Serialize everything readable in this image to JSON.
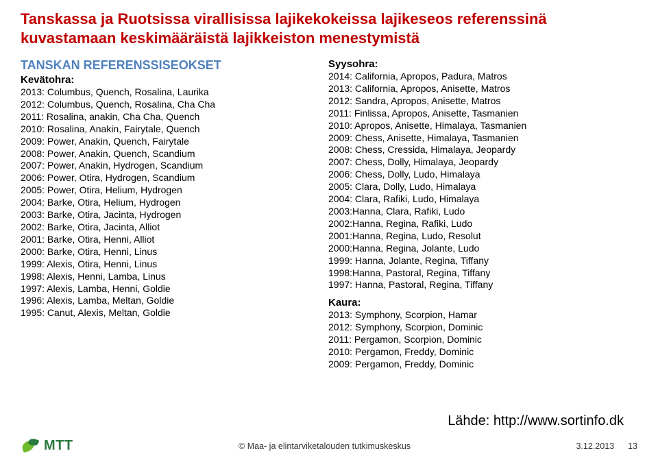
{
  "title": "Tanskassa ja Ruotsissa virallisissa lajikekokeissa lajikeseos referenssinä kuvastamaan keskimääräistä lajikkeiston menestymistä",
  "left": {
    "heading": "TANSKAN REFERENSSISEOKSET",
    "sub": "Kevätohra:",
    "lines": [
      "2013: Columbus, Quench, Rosalina, Laurika",
      "2012: Columbus, Quench, Rosalina, Cha Cha",
      "2011: Rosalina, anakin, Cha Cha, Quench",
      "2010: Rosalina, Anakin, Fairytale, Quench",
      "2009: Power, Anakin, Quench, Fairytale",
      "2008: Power, Anakin, Quench, Scandium",
      "2007: Power, Anakin, Hydrogen, Scandium",
      "2006: Power, Otira, Hydrogen, Scandium",
      "2005: Power, Otira, Helium, Hydrogen",
      "2004: Barke, Otira, Helium, Hydrogen",
      "2003: Barke, Otira, Jacinta, Hydrogen",
      "2002: Barke, Otira, Jacinta, Alliot",
      "2001: Barke, Otira, Henni, Alliot",
      "2000: Barke, Otira, Henni, Linus",
      "1999: Alexis, Otira, Henni, Linus",
      "1998: Alexis, Henni, Lamba, Linus",
      "1997: Alexis, Lamba, Henni, Goldie",
      "1996: Alexis, Lamba, Meltan, Goldie",
      "1995: Canut, Alexis, Meltan, Goldie"
    ]
  },
  "right": {
    "sub1": "Syysohra:",
    "lines1": [
      "2014: California, Apropos, Padura, Matros",
      "2013: California, Apropos, Anisette, Matros",
      "2012: Sandra, Apropos, Anisette, Matros",
      "2011: Finlissa, Apropos, Anisette, Tasmanien",
      "2010: Apropos, Anisette, Himalaya, Tasmanien",
      "2009: Chess, Anisette, Himalaya, Tasmanien",
      "2008: Chess, Cressida, Himalaya, Jeopardy",
      "2007: Chess, Dolly, Himalaya, Jeopardy",
      "2006: Chess, Dolly, Ludo, Himalaya",
      "2005: Clara, Dolly, Ludo, Himalaya",
      "2004: Clara, Rafiki, Ludo, Himalaya",
      "2003:Hanna, Clara, Rafiki, Ludo",
      "2002:Hanna, Regina, Rafiki, Ludo",
      "2001:Hanna, Regina, Ludo, Resolut",
      "2000:Hanna, Regina, Jolante, Ludo",
      "1999: Hanna, Jolante, Regina, Tiffany",
      "1998:Hanna, Pastoral, Regina, Tiffany",
      "1997: Hanna, Pastoral, Regina, Tiffany"
    ],
    "sub2": "Kaura:",
    "lines2": [
      "2013: Symphony, Scorpion, Hamar",
      "2012: Symphony, Scorpion, Dominic",
      "2011: Pergamon, Scorpion, Dominic",
      "2010: Pergamon, Freddy, Dominic",
      "2009: Pergamon, Freddy, Dominic"
    ]
  },
  "source": "Lähde: http://www.sortinfo.dk",
  "footer": {
    "org": "© Maa- ja elintarviketalouden tutkimuskeskus",
    "date": "3.12.2013",
    "page": "13",
    "logo": "MTT"
  },
  "colors": {
    "title": "#c00000",
    "heading": "#4f81bd",
    "text": "#000000",
    "logo_green": "#2a7a3f",
    "logo_light": "#6fb92c",
    "background": "#ffffff"
  },
  "typography": {
    "title_fontsize": 22,
    "heading_fontsize": 18,
    "sub_fontsize": 15,
    "line_fontsize": 14,
    "source_fontsize": 20,
    "footer_fontsize": 12.5,
    "family": "Arial"
  }
}
